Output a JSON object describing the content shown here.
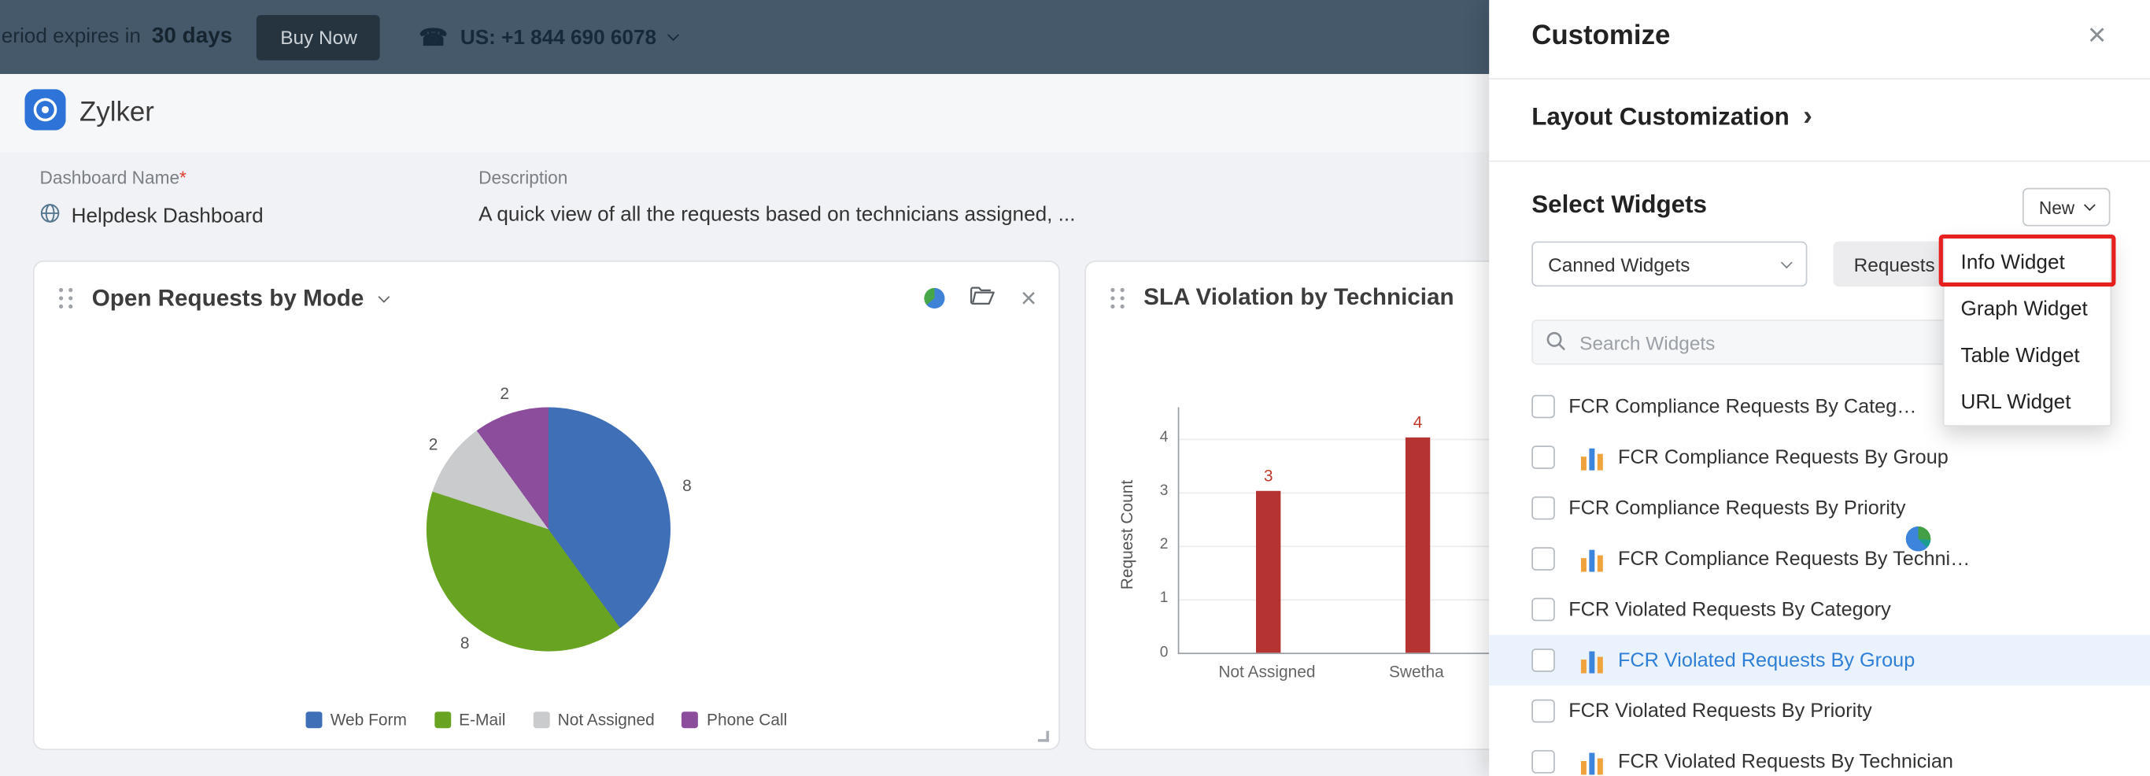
{
  "topbar": {
    "trial_text": "eriod expires in",
    "trial_days": "30 days",
    "buy_now_label": "Buy Now",
    "phone_label": "US: +1 844 690 6078"
  },
  "header": {
    "brand": "Zylker"
  },
  "form": {
    "dashboard_name_label": "Dashboard Name",
    "required_mark": "*",
    "dashboard_name_value": "Helpdesk Dashboard",
    "description_label": "Description",
    "description_value": "A quick view of all the requests based on technicians assigned, ..."
  },
  "chart_data": [
    {
      "type": "pie",
      "title": "Open Requests by Mode",
      "labels": [
        "Web Form",
        "E-Mail",
        "Not Assigned",
        "Phone Call"
      ],
      "values": [
        8,
        8,
        2,
        2
      ],
      "colors": [
        "#3f6fb6",
        "#68a322",
        "#c9cbcd",
        "#8c4d9d"
      ],
      "legend_position": "bottom"
    },
    {
      "type": "bar",
      "title": "SLA Violation by Technician",
      "categories": [
        "Not Assigned",
        "Swetha"
      ],
      "values": [
        3,
        4
      ],
      "xlabel": "",
      "ylabel": "Request Count",
      "ylim": [
        0,
        4
      ],
      "yticks": [
        0,
        1,
        2,
        3,
        4
      ],
      "bar_color": "#b53330",
      "grid": true,
      "legend_position": "none"
    }
  ],
  "panel": {
    "title": "Customize",
    "close_icon": "×",
    "layout_customization_label": "Layout Customization",
    "select_widgets_label": "Select Widgets",
    "new_button_label": "New",
    "canned_widgets_dropdown": "Canned Widgets",
    "requests_tab_label": "Requests",
    "search_placeholder": "Search Widgets",
    "new_menu_items": [
      "Info Widget",
      "Graph Widget",
      "Table Widget",
      "URL Widget"
    ],
    "highlighted_menu_item": "Info Widget",
    "widget_list": [
      {
        "label": "FCR Compliance Requests By Category",
        "icon": "pie",
        "highlighted": false
      },
      {
        "label": "FCR Compliance Requests By Group",
        "icon": "bar",
        "highlighted": false
      },
      {
        "label": "FCR Compliance Requests By Priority",
        "icon": "pie",
        "highlighted": false
      },
      {
        "label": "FCR Compliance Requests By Technician",
        "icon": "bar",
        "highlighted": false
      },
      {
        "label": "FCR Violated Requests By Category",
        "icon": "pie",
        "highlighted": false
      },
      {
        "label": "FCR Violated Requests By Group",
        "icon": "bar",
        "highlighted": true
      },
      {
        "label": "FCR Violated Requests By Priority",
        "icon": "pie",
        "highlighted": false
      },
      {
        "label": "FCR Violated Requests By Technician",
        "icon": "bar",
        "highlighted": false
      }
    ]
  },
  "colors": {
    "highlight_red": "#e5201e",
    "active_row_bg": "#eaf3fd",
    "active_row_text": "#2f7ed8",
    "topbar_bg": "#45596b"
  }
}
